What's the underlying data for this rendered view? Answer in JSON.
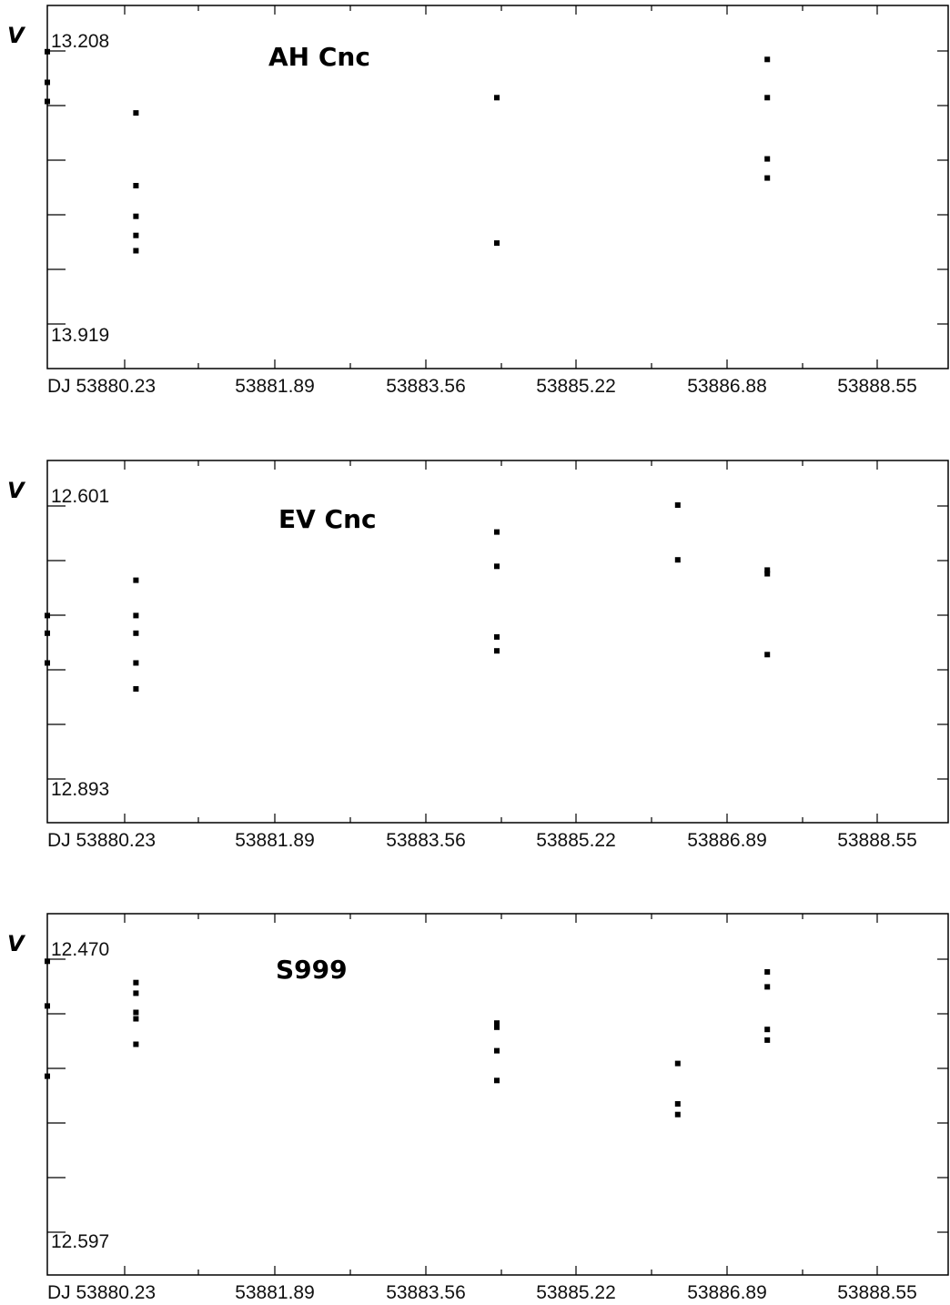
{
  "chart_data": [
    {
      "type": "scatter",
      "title": "AH Cnc",
      "ylabel": "V",
      "y_top_label": "13.208",
      "y_bottom_label": "13.919",
      "ylim": [
        13.208,
        13.919
      ],
      "y_inverted": true,
      "x_tick_labels": [
        "DJ 53880.23",
        "53881.89",
        "53883.56",
        "53885.22",
        "53886.88",
        "53888.55"
      ],
      "x_ticks": [
        53880.23,
        53881.89,
        53883.56,
        53885.22,
        53886.88,
        53888.55
      ],
      "xlim": [
        53879.4,
        53889.36
      ],
      "points": [
        {
          "x": 53879.4,
          "y": 13.21
        },
        {
          "x": 53879.4,
          "y": 13.29
        },
        {
          "x": 53879.4,
          "y": 13.34
        },
        {
          "x": 53880.38,
          "y": 13.37
        },
        {
          "x": 53880.38,
          "y": 13.56
        },
        {
          "x": 53880.38,
          "y": 13.64
        },
        {
          "x": 53880.38,
          "y": 13.69
        },
        {
          "x": 53880.38,
          "y": 13.73
        },
        {
          "x": 53884.37,
          "y": 13.33
        },
        {
          "x": 53884.37,
          "y": 13.71
        },
        {
          "x": 53887.36,
          "y": 13.23
        },
        {
          "x": 53887.36,
          "y": 13.33
        },
        {
          "x": 53887.36,
          "y": 13.49
        },
        {
          "x": 53887.36,
          "y": 13.54
        }
      ]
    },
    {
      "type": "scatter",
      "title": "EV Cnc",
      "ylabel": "V",
      "y_top_label": "12.601",
      "y_bottom_label": "12.893",
      "ylim": [
        12.601,
        12.893
      ],
      "y_inverted": true,
      "x_tick_labels": [
        "DJ 53880.23",
        "53881.89",
        "53883.56",
        "53885.22",
        "53886.89",
        "53888.55"
      ],
      "x_ticks": [
        53880.23,
        53881.89,
        53883.56,
        53885.22,
        53886.89,
        53888.55
      ],
      "xlim": [
        53879.4,
        53889.36
      ],
      "points": [
        {
          "x": 53879.4,
          "y": 12.719
        },
        {
          "x": 53879.4,
          "y": 12.738
        },
        {
          "x": 53879.4,
          "y": 12.77
        },
        {
          "x": 53880.38,
          "y": 12.681
        },
        {
          "x": 53880.38,
          "y": 12.719
        },
        {
          "x": 53880.38,
          "y": 12.738
        },
        {
          "x": 53880.38,
          "y": 12.77
        },
        {
          "x": 53880.38,
          "y": 12.798
        },
        {
          "x": 53884.37,
          "y": 12.629
        },
        {
          "x": 53884.37,
          "y": 12.666
        },
        {
          "x": 53884.37,
          "y": 12.742
        },
        {
          "x": 53884.37,
          "y": 12.757
        },
        {
          "x": 53886.37,
          "y": 12.6
        },
        {
          "x": 53886.37,
          "y": 12.659
        },
        {
          "x": 53887.36,
          "y": 12.67
        },
        {
          "x": 53887.36,
          "y": 12.674
        },
        {
          "x": 53887.36,
          "y": 12.761
        }
      ]
    },
    {
      "type": "scatter",
      "title": "S999",
      "ylabel": "V",
      "y_top_label": "12.470",
      "y_bottom_label": "12.597",
      "ylim": [
        12.47,
        12.597
      ],
      "y_inverted": true,
      "x_tick_labels": [
        "DJ 53880.23",
        "53881.89",
        "53883.56",
        "53885.22",
        "53886.89",
        "53888.55"
      ],
      "x_ticks": [
        53880.23,
        53881.89,
        53883.56,
        53885.22,
        53886.89,
        53888.55
      ],
      "xlim": [
        53879.4,
        53889.36
      ],
      "points": [
        {
          "x": 53879.4,
          "y": 12.471
        },
        {
          "x": 53879.4,
          "y": 12.492
        },
        {
          "x": 53879.4,
          "y": 12.525
        },
        {
          "x": 53880.38,
          "y": 12.481
        },
        {
          "x": 53880.38,
          "y": 12.486
        },
        {
          "x": 53880.38,
          "y": 12.495
        },
        {
          "x": 53880.38,
          "y": 12.498
        },
        {
          "x": 53880.38,
          "y": 12.51
        },
        {
          "x": 53884.37,
          "y": 12.5
        },
        {
          "x": 53884.37,
          "y": 12.502
        },
        {
          "x": 53884.37,
          "y": 12.513
        },
        {
          "x": 53884.37,
          "y": 12.527
        },
        {
          "x": 53886.37,
          "y": 12.519
        },
        {
          "x": 53886.37,
          "y": 12.538
        },
        {
          "x": 53886.37,
          "y": 12.543
        },
        {
          "x": 53887.36,
          "y": 12.476
        },
        {
          "x": 53887.36,
          "y": 12.483
        },
        {
          "x": 53887.36,
          "y": 12.503
        },
        {
          "x": 53887.36,
          "y": 12.508
        }
      ]
    }
  ]
}
